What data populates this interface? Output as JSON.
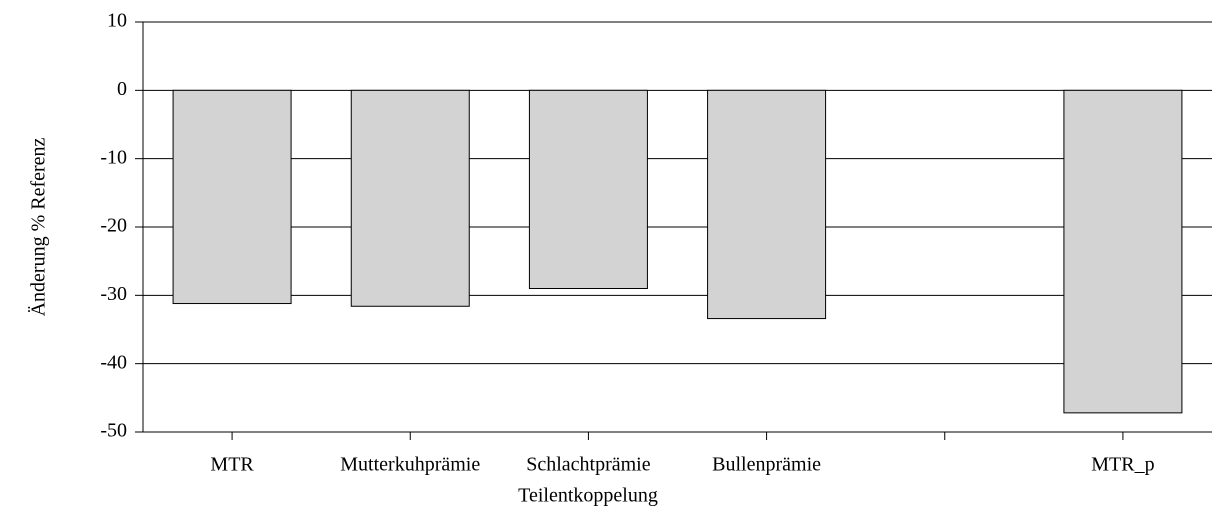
{
  "chart_data": {
    "type": "bar",
    "categories": [
      "MTR",
      "Mutterkuhprämie",
      "Schlachtprämie",
      "Bullenprämie",
      null,
      "MTR_p"
    ],
    "values": [
      -31.2,
      -31.6,
      -29,
      -33.4,
      null,
      -47.2
    ],
    "color": "#d3d3d3",
    "xlabel": "Teilentkoppelung",
    "ylabel": "Änderung % Referenz",
    "ylim": [
      -50,
      10
    ],
    "yticks": [
      -50,
      -40,
      -30,
      -20,
      -10,
      0,
      10
    ],
    "grid": true
  }
}
